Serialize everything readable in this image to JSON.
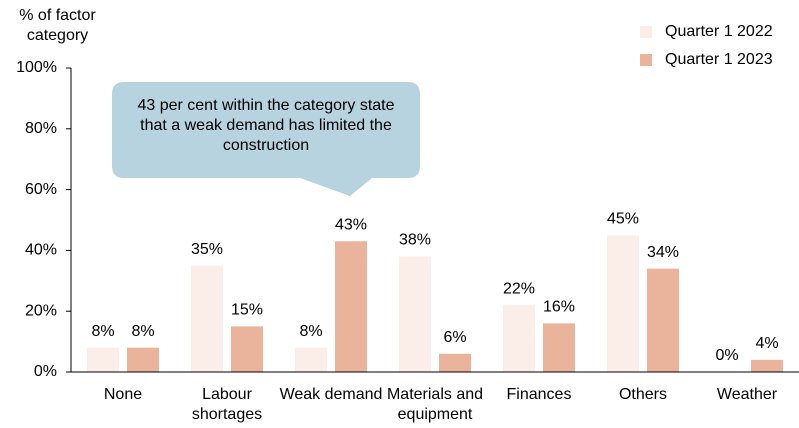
{
  "chart_data": {
    "type": "bar",
    "y_axis_label": "% of factor category",
    "annotation": "43 per cent within the category state that a weak demand has limited the construction",
    "categories": [
      "None",
      "Labour shortages",
      "Weak demand",
      "Materials and equipment",
      "Finances",
      "Others",
      "Weather"
    ],
    "series": [
      {
        "name": "Quarter 1 2022",
        "color": "#fbeee9",
        "values": [
          8,
          35,
          8,
          38,
          22,
          45,
          0
        ],
        "value_labels": [
          "8%",
          "35%",
          "8%",
          "38%",
          "22%",
          "45%",
          "0%"
        ]
      },
      {
        "name": "Quarter 1 2023",
        "color": "#e9b39c",
        "values": [
          8,
          15,
          43,
          6,
          16,
          34,
          4
        ],
        "value_labels": [
          "8%",
          "15%",
          "43%",
          "6%",
          "16%",
          "34%",
          "4%"
        ]
      }
    ],
    "ylim": [
      0,
      100
    ],
    "yticks": [
      {
        "value": 0,
        "label": "0%"
      },
      {
        "value": 20,
        "label": "20%"
      },
      {
        "value": 40,
        "label": "40%"
      },
      {
        "value": 60,
        "label": "60%"
      },
      {
        "value": 80,
        "label": "80%"
      },
      {
        "value": 100,
        "label": "100%"
      }
    ],
    "legend": "top-right"
  }
}
